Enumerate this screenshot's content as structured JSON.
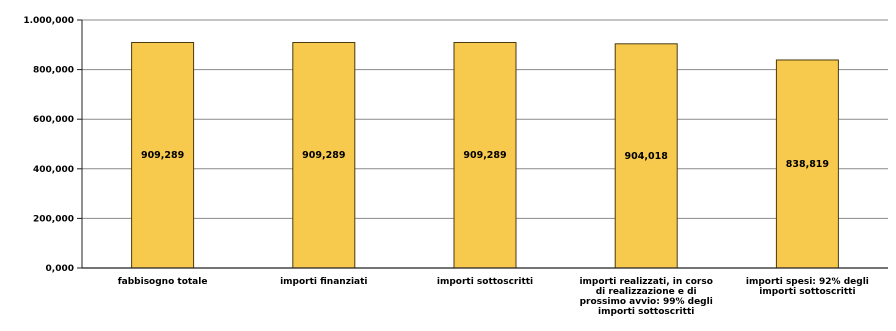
{
  "chart_data": {
    "type": "bar",
    "categories": [
      "fabbisogno totale",
      "importi finanziati",
      "importi sottoscritti",
      "importi realizzati, in corso di realizzazione e di prossimo avvio: 99% degli importi sottoscritti",
      "importi spesi: 92% degli importi sottoscritti"
    ],
    "category_label_lines": [
      [
        "fabbisogno totale"
      ],
      [
        "importi finanziati"
      ],
      [
        "importi sottoscritti"
      ],
      [
        "importi realizzati, in corso",
        "di realizzazione e di",
        "prossimo avvio: 99% degli",
        "importi sottoscritti"
      ],
      [
        "importi spesi: 92% degli",
        "importi sottoscritti"
      ]
    ],
    "values": [
      909289,
      909289,
      909289,
      904018,
      838819
    ],
    "value_labels": [
      "909,289",
      "909,289",
      "909,289",
      "904,018",
      "838,819"
    ],
    "y_ticks": [
      0,
      200000,
      400000,
      600000,
      800000,
      1000000
    ],
    "y_tick_labels": [
      "0,000",
      "200,000",
      "400,000",
      "600,000",
      "800,000",
      "1.000,000"
    ],
    "ylim": [
      0,
      1000000
    ],
    "grid": true,
    "colors": {
      "bar": "#f7c94d",
      "bar_stroke": "#4a3a10",
      "grid": "#8a8a8a",
      "axis": "#222222"
    }
  }
}
